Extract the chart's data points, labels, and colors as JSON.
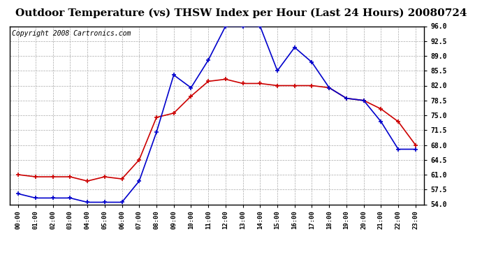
{
  "title": "Outdoor Temperature (vs) THSW Index per Hour (Last 24 Hours) 20080724",
  "copyright": "Copyright 2008 Cartronics.com",
  "hours": [
    "00:00",
    "01:00",
    "02:00",
    "03:00",
    "04:00",
    "05:00",
    "06:00",
    "07:00",
    "08:00",
    "09:00",
    "10:00",
    "11:00",
    "12:00",
    "13:00",
    "14:00",
    "15:00",
    "16:00",
    "17:00",
    "18:00",
    "19:00",
    "20:00",
    "21:00",
    "22:00",
    "23:00"
  ],
  "outdoor_temp": [
    61.0,
    60.5,
    60.5,
    60.5,
    59.5,
    60.5,
    60.0,
    64.5,
    74.5,
    75.5,
    79.5,
    83.0,
    83.5,
    82.5,
    82.5,
    82.0,
    82.0,
    82.0,
    81.5,
    79.0,
    78.5,
    76.5,
    73.5,
    68.0
  ],
  "thsw_index": [
    56.5,
    55.5,
    55.5,
    55.5,
    54.5,
    54.5,
    54.5,
    59.5,
    71.0,
    84.5,
    81.5,
    88.0,
    96.0,
    96.0,
    96.0,
    85.5,
    91.0,
    87.5,
    81.5,
    79.0,
    78.5,
    73.5,
    67.0,
    67.0
  ],
  "temp_color": "#cc0000",
  "thsw_color": "#0000cc",
  "ylim_min": 54.0,
  "ylim_max": 96.0,
  "ytick_interval": 3.5,
  "background_color": "#ffffff",
  "plot_bg_color": "#ffffff",
  "grid_color": "#aaaaaa",
  "title_fontsize": 11,
  "copyright_fontsize": 7
}
